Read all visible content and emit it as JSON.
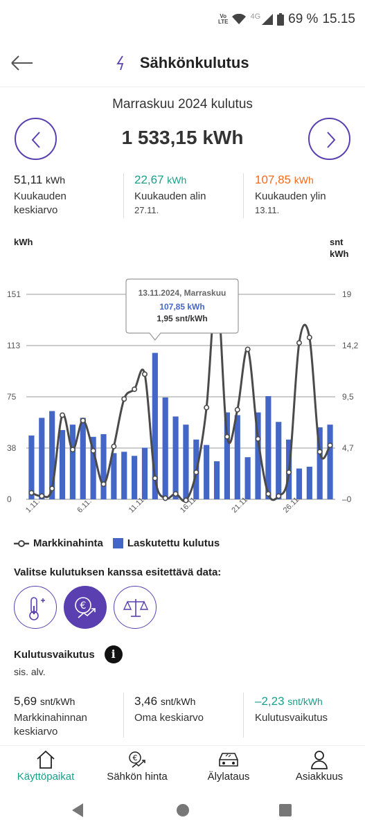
{
  "status": {
    "volte": "Vo\nLTE",
    "net": "4G",
    "battery": "69 %",
    "time": "15.15"
  },
  "appbar": {
    "title": "Sähkönkulutus"
  },
  "month": {
    "label": "Marraskuu 2024 kulutus",
    "total": "1 533,15 kWh"
  },
  "stats": [
    {
      "value": "51,11",
      "unit": "kWh",
      "label1": "Kuukauden",
      "label2": "keskiarvo",
      "color": "#222222"
    },
    {
      "value": "22,67",
      "unit": "kWh",
      "label1": "Kuukauden alin",
      "label2": "27.11.",
      "color": "#16a08a"
    },
    {
      "value": "107,85",
      "unit": "kWh",
      "label1": "Kuukauden ylin",
      "label2": "13.11.",
      "color": "#f26a1b"
    }
  ],
  "chart_data": {
    "type": "bar",
    "left_unit": "kWh",
    "right_unit_line1": "snt",
    "right_unit_line2": "kWh",
    "left_ticks": [
      "151",
      "113",
      "75",
      "38",
      "0"
    ],
    "right_ticks": [
      "19",
      "14,2",
      "9,5",
      "4,7",
      "0"
    ],
    "ylim": [
      0,
      151
    ],
    "y2lim": [
      0,
      19
    ],
    "x_labels": [
      {
        "text": "1.11.",
        "day": 1
      },
      {
        "text": "6.11.",
        "day": 6
      },
      {
        "text": "11.11.",
        "day": 11
      },
      {
        "text": "16.11.",
        "day": 16
      },
      {
        "text": "21.11.",
        "day": 21
      },
      {
        "text": "26.11.",
        "day": 26
      }
    ],
    "bar_series_name": "Laskutettu kulutus",
    "line_series_name": "Markkinahinta",
    "bar_color": "#4466c6",
    "line_color": "#4a4a4a",
    "bars": [
      47,
      60,
      65,
      51,
      55,
      60,
      46,
      48,
      34,
      35,
      32,
      38,
      107.85,
      75,
      61,
      55,
      44,
      40,
      28,
      64,
      62,
      31,
      64,
      76,
      57,
      44,
      22.67,
      24,
      53,
      55
    ],
    "line": [
      0.6,
      0.3,
      1.0,
      7.8,
      4.6,
      7.3,
      4.5,
      1.4,
      4.9,
      9.3,
      10.2,
      11.6,
      1.95,
      0.1,
      0.5,
      -0.1,
      2.5,
      8.5,
      19.5,
      5.8,
      8.3,
      13.9,
      5.6,
      0.5,
      0.3,
      2.5,
      14.5,
      15.0,
      4.4,
      5.0
    ],
    "tooltip": {
      "date": "13.11.2024, Marraskuu",
      "value": "107,85 kWh",
      "price": "1,95 snt/kWh"
    }
  },
  "legend": {
    "line_label": "Markkinahinta",
    "bar_label": "Laskutettu kulutus"
  },
  "choose_label": "Valitse kulutuksen kanssa esitettävä data:",
  "options": [
    {
      "icon": "thermometer-plus-icon",
      "active": false
    },
    {
      "icon": "euro-trend-icon",
      "active": true
    },
    {
      "icon": "scale-icon",
      "active": false
    }
  ],
  "impact": {
    "title": "Kulutusvaikutus",
    "info": "i",
    "vat": "sis. alv."
  },
  "stats2": [
    {
      "value": "5,69",
      "unit": "snt/kWh",
      "label1": "Markkinahinnan",
      "label2": "keskiarvo",
      "color": "#222222"
    },
    {
      "value": "3,46",
      "unit": "snt/kWh",
      "label1": "Oma keskiarvo",
      "label2": "",
      "color": "#222222"
    },
    {
      "value": "–2,23",
      "unit": "snt/kWh",
      "label1": "Kulutusvaikutus",
      "label2": "",
      "color": "#16a08a"
    }
  ],
  "nav": [
    {
      "label": "Käyttöpaikat",
      "icon": "home-icon",
      "active": true
    },
    {
      "label": "Sähkön hinta",
      "icon": "euro-trend-icon",
      "active": false
    },
    {
      "label": "Älylataus",
      "icon": "car-icon",
      "active": false
    },
    {
      "label": "Asiakkuus",
      "icon": "person-icon",
      "active": false
    }
  ],
  "colors": {
    "accent": "#5a3fb0",
    "teal": "#16a08a",
    "orange": "#f26a1b",
    "bar": "#4466c6"
  }
}
